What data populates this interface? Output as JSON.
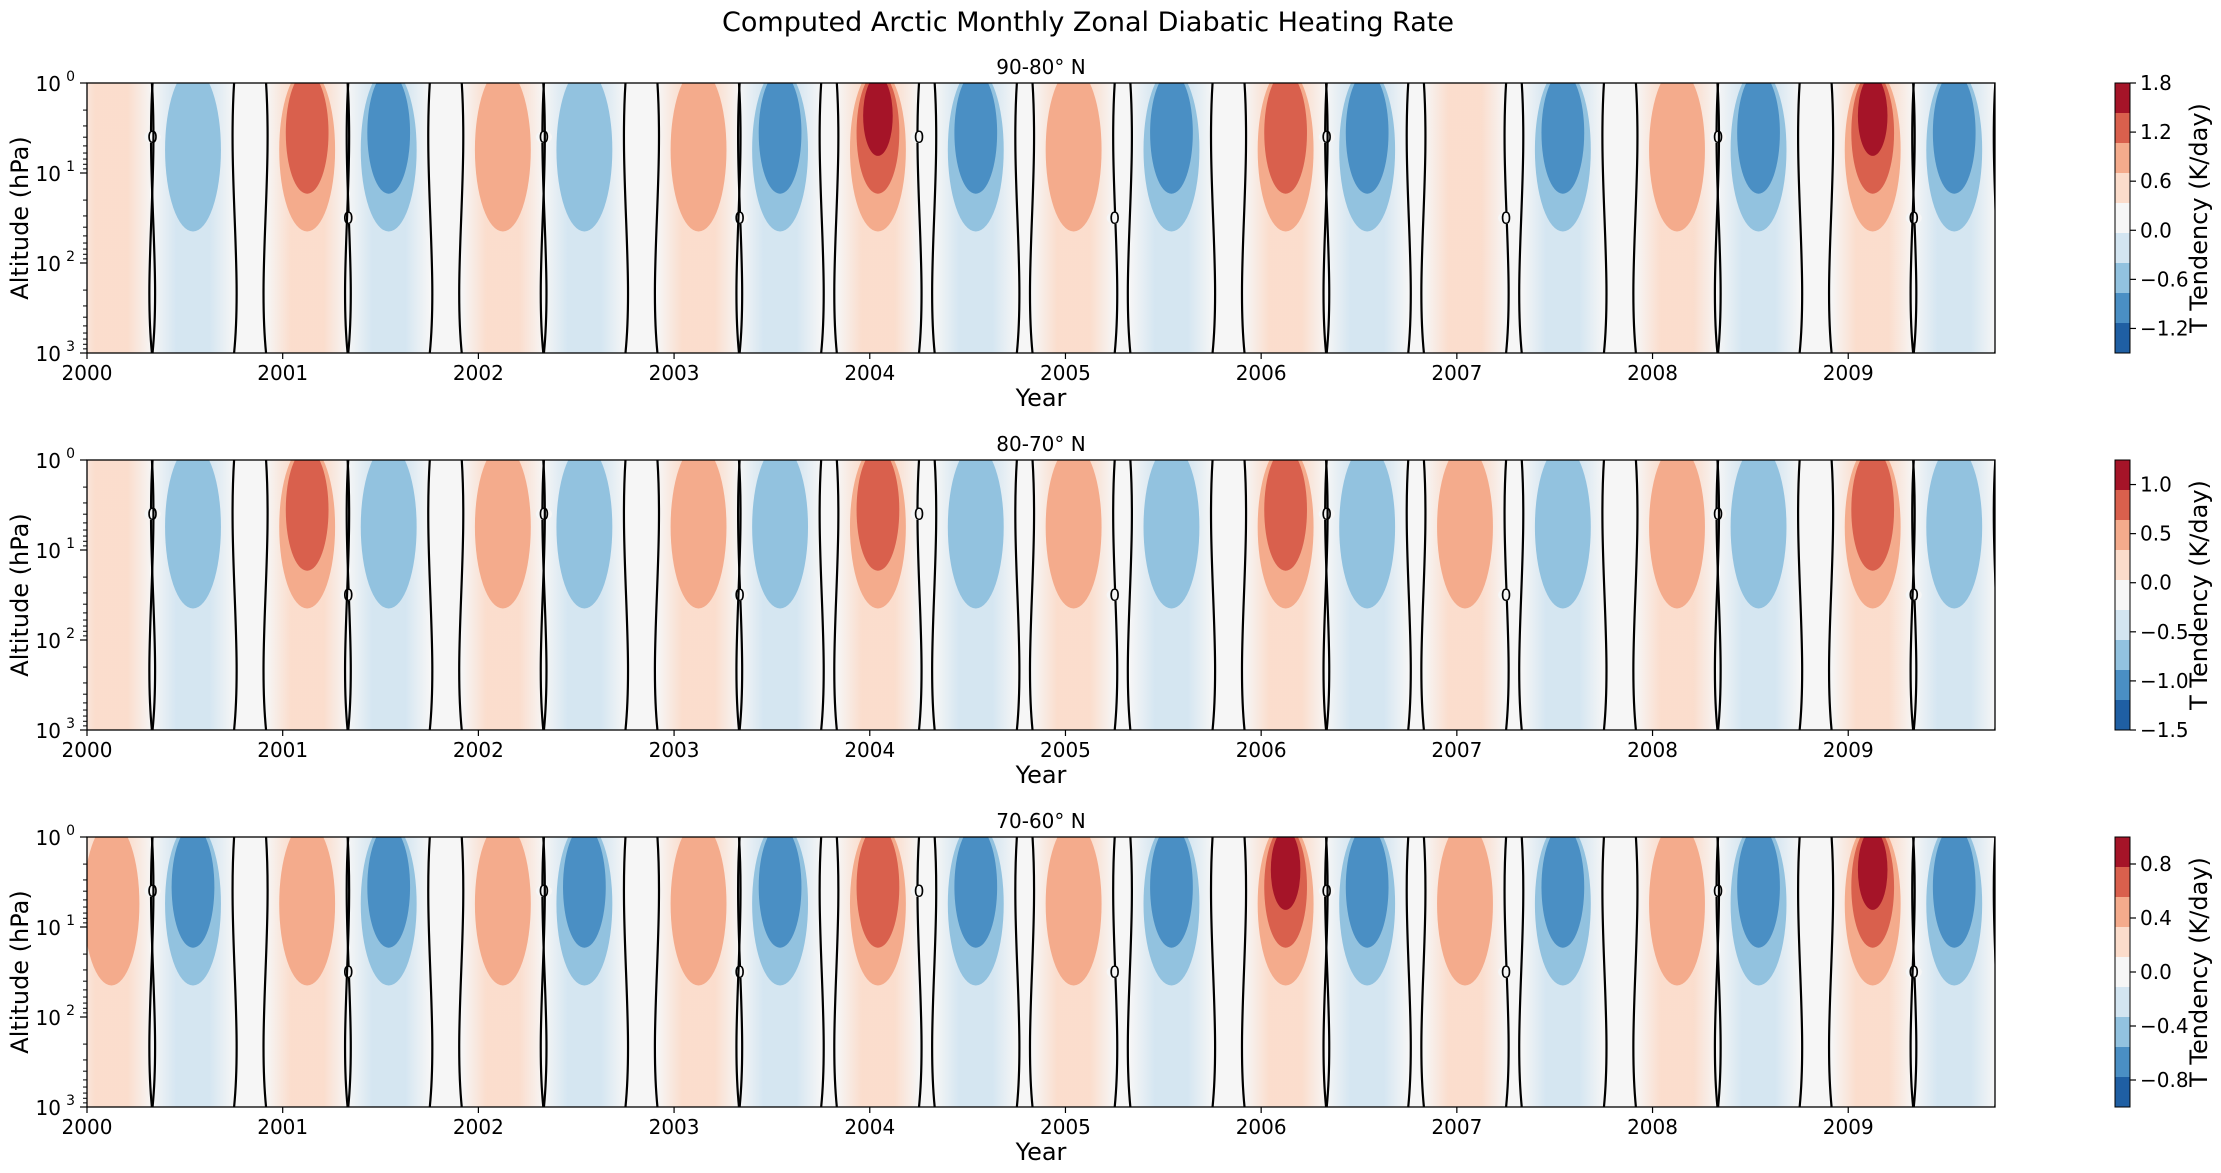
{
  "figure": {
    "title": "Computed Arctic Monthly Zonal Diabatic Heating Rate"
  },
  "colors": {
    "neg3": "#1f5fa3",
    "neg2": "#4a8fc4",
    "neg1": "#92c2df",
    "neg0": "#d3e5f1",
    "zero": "#f6f6f6",
    "pos0": "#fbdccb",
    "pos1": "#f4ab8c",
    "pos2": "#d9604d",
    "pos3": "#a51428",
    "contour": "#000000"
  },
  "chart_data": [
    {
      "type": "heatmap",
      "title": "90-80° N",
      "xlabel": "Year",
      "ylabel": "Altitude (hPa)",
      "xticks": [
        "2000",
        "2001",
        "2002",
        "2003",
        "2004",
        "2005",
        "2006",
        "2007",
        "2008",
        "2009"
      ],
      "xlim": [
        "2000-01",
        "2009-10"
      ],
      "y_scale": "log",
      "yticks": [
        "10^0",
        "10^1",
        "10^2",
        "10^3"
      ],
      "ylim": [
        1000,
        1
      ],
      "colorbar": {
        "label": "T Tendency (K/day)",
        "range": [
          -1.5,
          1.8
        ],
        "ticks": [
          "1.8",
          "1.2",
          "0.6",
          "0.0",
          "−0.6",
          "−1.2"
        ]
      },
      "contour_label": "0",
      "background_value": 0.0,
      "annual_cycle": "positive (heating) in winter, negative (cooling) in summer",
      "events": [
        {
          "date": "2000-02",
          "alt_hpa": 1,
          "value": 0.5
        },
        {
          "date": "2000-07",
          "alt_hpa": 1,
          "value": -0.9
        },
        {
          "date": "2001-02",
          "alt_hpa": 1,
          "value": 1.0
        },
        {
          "date": "2001-07",
          "alt_hpa": 1,
          "value": -1.1
        },
        {
          "date": "2002-02",
          "alt_hpa": 1,
          "value": 0.6
        },
        {
          "date": "2002-07",
          "alt_hpa": 1,
          "value": -0.9
        },
        {
          "date": "2003-02",
          "alt_hpa": 1,
          "value": 0.6
        },
        {
          "date": "2003-07",
          "alt_hpa": 1,
          "value": -1.0
        },
        {
          "date": "2004-01",
          "alt_hpa": 1,
          "value": 1.5
        },
        {
          "date": "2004-07",
          "alt_hpa": 1,
          "value": -1.2
        },
        {
          "date": "2005-01",
          "alt_hpa": 1,
          "value": 0.7
        },
        {
          "date": "2005-07",
          "alt_hpa": 1,
          "value": -1.0
        },
        {
          "date": "2006-02",
          "alt_hpa": 1,
          "value": 1.3
        },
        {
          "date": "2006-07",
          "alt_hpa": 1,
          "value": -1.0
        },
        {
          "date": "2007-01",
          "alt_hpa": 1,
          "value": 0.5
        },
        {
          "date": "2007-07",
          "alt_hpa": 1,
          "value": -1.0
        },
        {
          "date": "2008-02",
          "alt_hpa": 1,
          "value": 0.8
        },
        {
          "date": "2008-07",
          "alt_hpa": 1,
          "value": -1.0
        },
        {
          "date": "2009-02",
          "alt_hpa": 1,
          "value": 1.7
        },
        {
          "date": "2009-07",
          "alt_hpa": 1,
          "value": -1.0
        }
      ]
    },
    {
      "type": "heatmap",
      "title": "80-70° N",
      "xlabel": "Year",
      "ylabel": "Altitude (hPa)",
      "xticks": [
        "2000",
        "2001",
        "2002",
        "2003",
        "2004",
        "2005",
        "2006",
        "2007",
        "2008",
        "2009"
      ],
      "xlim": [
        "2000-01",
        "2009-10"
      ],
      "y_scale": "log",
      "yticks": [
        "10^0",
        "10^1",
        "10^2",
        "10^3"
      ],
      "ylim": [
        1000,
        1
      ],
      "colorbar": {
        "label": "T Tendency (K/day)",
        "range": [
          -1.5,
          1.25
        ],
        "ticks": [
          "1.0",
          "0.5",
          "0.0",
          "−0.5",
          "−1.0",
          "−1.5"
        ]
      },
      "contour_label": "0",
      "background_value": 0.0,
      "annual_cycle": "positive (heating) in winter, negative (cooling) in summer",
      "events": [
        {
          "date": "2000-02",
          "alt_hpa": 1,
          "value": 0.4
        },
        {
          "date": "2000-07",
          "alt_hpa": 1,
          "value": -0.5
        },
        {
          "date": "2001-02",
          "alt_hpa": 1,
          "value": 0.9
        },
        {
          "date": "2001-07",
          "alt_hpa": 1,
          "value": -0.5
        },
        {
          "date": "2002-02",
          "alt_hpa": 1,
          "value": 0.5
        },
        {
          "date": "2002-07",
          "alt_hpa": 1,
          "value": -0.5
        },
        {
          "date": "2003-02",
          "alt_hpa": 1,
          "value": 0.6
        },
        {
          "date": "2003-07",
          "alt_hpa": 1,
          "value": -0.5
        },
        {
          "date": "2004-01",
          "alt_hpa": 1,
          "value": 1.1
        },
        {
          "date": "2004-07",
          "alt_hpa": 1,
          "value": -0.5
        },
        {
          "date": "2005-01",
          "alt_hpa": 1,
          "value": 0.6
        },
        {
          "date": "2005-07",
          "alt_hpa": 1,
          "value": -0.5
        },
        {
          "date": "2006-02",
          "alt_hpa": 1,
          "value": 1.0
        },
        {
          "date": "2006-07",
          "alt_hpa": 1,
          "value": -0.5
        },
        {
          "date": "2007-01",
          "alt_hpa": 1,
          "value": 0.5
        },
        {
          "date": "2007-07",
          "alt_hpa": 1,
          "value": -0.5
        },
        {
          "date": "2008-02",
          "alt_hpa": 1,
          "value": 0.8
        },
        {
          "date": "2008-07",
          "alt_hpa": 1,
          "value": -0.5
        },
        {
          "date": "2009-02",
          "alt_hpa": 1,
          "value": 1.2
        },
        {
          "date": "2009-07",
          "alt_hpa": 1,
          "value": -0.5
        }
      ]
    },
    {
      "type": "heatmap",
      "title": "70-60° N",
      "xlabel": "Year",
      "ylabel": "Altitude (hPa)",
      "xticks": [
        "2000",
        "2001",
        "2002",
        "2003",
        "2004",
        "2005",
        "2006",
        "2007",
        "2008",
        "2009"
      ],
      "xlim": [
        "2000-01",
        "2009-10"
      ],
      "y_scale": "log",
      "yticks": [
        "10^0",
        "10^1",
        "10^2",
        "10^3"
      ],
      "ylim": [
        1000,
        1
      ],
      "colorbar": {
        "label": "T Tendency (K/day)",
        "range": [
          -1.0,
          1.0
        ],
        "ticks": [
          "0.8",
          "0.4",
          "0.0",
          "−0.4",
          "−0.8"
        ]
      },
      "contour_label": "0",
      "background_value": 0.0,
      "annual_cycle": "positive (heating) in winter, negative (cooling) in summer",
      "events": [
        {
          "date": "2000-02",
          "alt_hpa": 1,
          "value": 0.3
        },
        {
          "date": "2000-07",
          "alt_hpa": 1,
          "value": -0.6
        },
        {
          "date": "2001-02",
          "alt_hpa": 1,
          "value": 0.5
        },
        {
          "date": "2001-07",
          "alt_hpa": 1,
          "value": -0.6
        },
        {
          "date": "2002-02",
          "alt_hpa": 1,
          "value": 0.3
        },
        {
          "date": "2002-07",
          "alt_hpa": 1,
          "value": -0.6
        },
        {
          "date": "2003-02",
          "alt_hpa": 1,
          "value": 0.4
        },
        {
          "date": "2003-07",
          "alt_hpa": 1,
          "value": -0.6
        },
        {
          "date": "2004-01",
          "alt_hpa": 1,
          "value": 0.7
        },
        {
          "date": "2004-07",
          "alt_hpa": 1,
          "value": -0.6
        },
        {
          "date": "2005-01",
          "alt_hpa": 1,
          "value": 0.4
        },
        {
          "date": "2005-07",
          "alt_hpa": 1,
          "value": -0.6
        },
        {
          "date": "2006-02",
          "alt_hpa": 1,
          "value": 0.8
        },
        {
          "date": "2006-07",
          "alt_hpa": 1,
          "value": -0.6
        },
        {
          "date": "2007-01",
          "alt_hpa": 1,
          "value": 0.3
        },
        {
          "date": "2007-07",
          "alt_hpa": 1,
          "value": -0.6
        },
        {
          "date": "2008-02",
          "alt_hpa": 1,
          "value": 0.5
        },
        {
          "date": "2008-07",
          "alt_hpa": 1,
          "value": -0.6
        },
        {
          "date": "2009-02",
          "alt_hpa": 1,
          "value": 0.9
        },
        {
          "date": "2009-07",
          "alt_hpa": 1,
          "value": -0.6
        }
      ]
    }
  ]
}
